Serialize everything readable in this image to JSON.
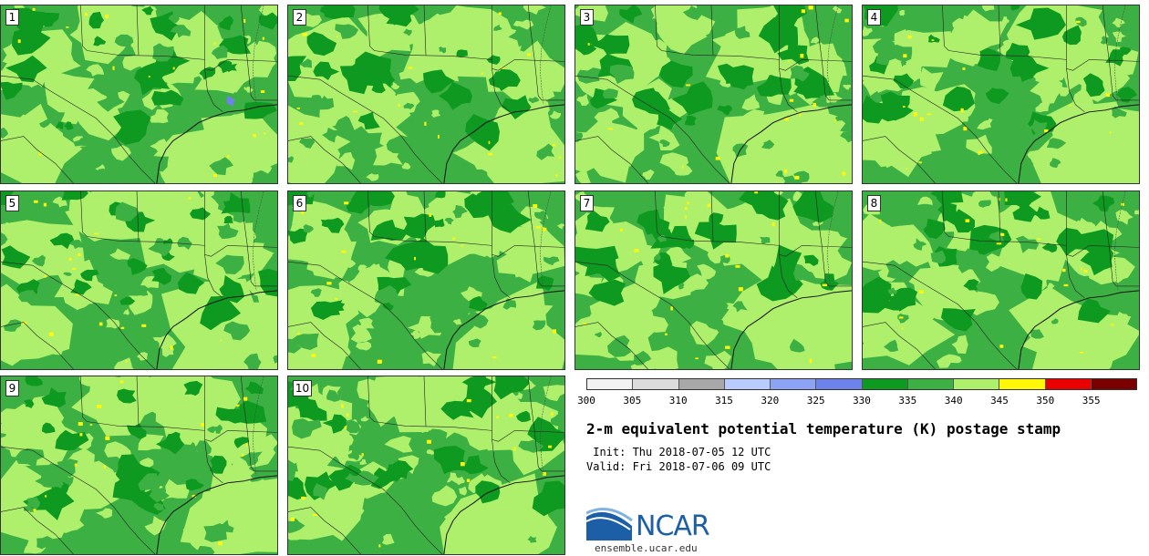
{
  "panels": [
    {
      "label": "1",
      "seed": 11
    },
    {
      "label": "2",
      "seed": 23
    },
    {
      "label": "3",
      "seed": 37
    },
    {
      "label": "4",
      "seed": 41
    },
    {
      "label": "5",
      "seed": 53
    },
    {
      "label": "6",
      "seed": 67
    },
    {
      "label": "7",
      "seed": 71
    },
    {
      "label": "8",
      "seed": 83
    },
    {
      "label": "9",
      "seed": 97
    },
    {
      "label": "10",
      "seed": 101
    }
  ],
  "colorbar": {
    "ticks": [
      "300",
      "305",
      "310",
      "315",
      "320",
      "325",
      "330",
      "335",
      "340",
      "345",
      "350",
      "355"
    ],
    "colors": [
      "#f2f2f2",
      "#dcdcdc",
      "#a8a8a8",
      "#b9ccff",
      "#8da4f5",
      "#6e82ec",
      "#0e9a20",
      "#3db043",
      "#aef06c",
      "#fff70a",
      "#ea0000",
      "#7a0000"
    ]
  },
  "field_colors": {
    "base": "#3db043",
    "light": "#aef06c",
    "dark": "#0e9a20",
    "yellow": "#fff70a",
    "blue": "#6e82ec"
  },
  "title": "2-m equivalent potential temperature (K) postage stamp",
  "init": " Init: Thu 2018-07-05 12 UTC",
  "valid": "Valid: Fri 2018-07-06 09 UTC",
  "logo_text": "NCAR",
  "site": "ensemble.ucar.edu"
}
